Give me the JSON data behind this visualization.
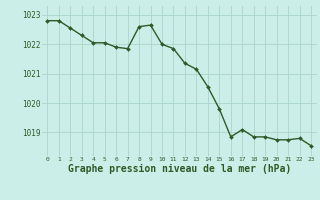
{
  "x": [
    0,
    1,
    2,
    3,
    4,
    5,
    6,
    7,
    8,
    9,
    10,
    11,
    12,
    13,
    14,
    15,
    16,
    17,
    18,
    19,
    20,
    21,
    22,
    23
  ],
  "y": [
    1022.8,
    1022.8,
    1022.55,
    1022.3,
    1022.05,
    1022.05,
    1021.9,
    1021.85,
    1022.6,
    1022.65,
    1022.0,
    1021.85,
    1021.35,
    1021.15,
    1020.55,
    1019.8,
    1018.85,
    1019.1,
    1018.85,
    1018.85,
    1018.75,
    1018.75,
    1018.8,
    1018.55
  ],
  "line_color": "#2d5a27",
  "marker": "D",
  "marker_size": 2.0,
  "line_width": 1.0,
  "bg_color": "#cceee8",
  "grid_color": "#aad4cc",
  "tick_label_color": "#2d5a27",
  "xlabel": "Graphe pression niveau de la mer (hPa)",
  "xlabel_color": "#2d5a27",
  "xlabel_fontsize": 7,
  "yticks": [
    1019,
    1020,
    1021,
    1022,
    1023
  ],
  "xticks": [
    0,
    1,
    2,
    3,
    4,
    5,
    6,
    7,
    8,
    9,
    10,
    11,
    12,
    13,
    14,
    15,
    16,
    17,
    18,
    19,
    20,
    21,
    22,
    23
  ],
  "ylim": [
    1018.2,
    1023.3
  ],
  "xlim": [
    -0.5,
    23.5
  ]
}
